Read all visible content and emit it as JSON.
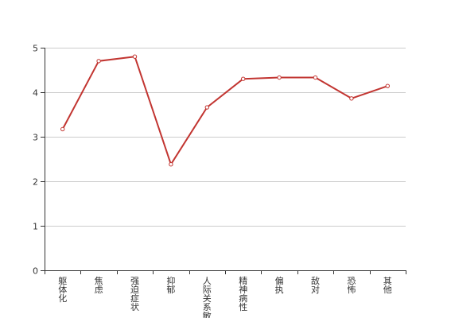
{
  "chart_data": {
    "type": "line",
    "title": "",
    "xlabel": "",
    "ylabel": "",
    "categories": [
      "躯体化",
      "焦虑",
      "强迫症状",
      "抑郁",
      "人际关系敏感",
      "精神病性",
      "偏执",
      "敌对",
      "恐怖",
      "其他"
    ],
    "series": [
      {
        "name": "",
        "values": [
          3.17,
          4.7,
          4.8,
          2.38,
          3.66,
          4.3,
          4.33,
          4.33,
          3.86,
          4.14
        ]
      }
    ],
    "ylim": [
      0,
      5
    ],
    "yticks": [
      0,
      1,
      2,
      3,
      4,
      5
    ],
    "grid": true,
    "legend": "none",
    "colors": {
      "series": "#c23531",
      "grid": "#cccccc",
      "axis": "#333333"
    }
  }
}
